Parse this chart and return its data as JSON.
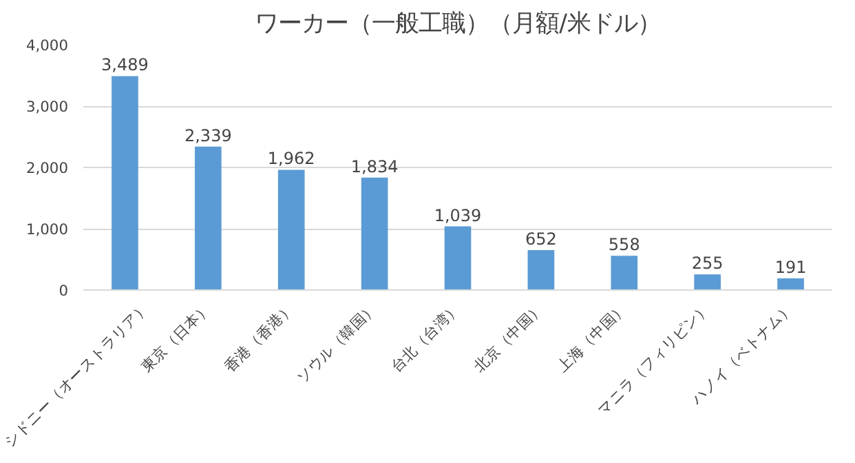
{
  "chart_data": {
    "type": "bar",
    "title": "ワーカー（一般工職）（月額/米ドル）",
    "categories": [
      "シドニー（オーストラリア）",
      "東京（日本）",
      "香港（香港）",
      "ソウル（韓国）",
      "台北（台湾）",
      "北京（中国）",
      "上海（中国）",
      "マニラ（フィリピン）",
      "ハノイ（ベトナム）"
    ],
    "values": [
      3489,
      2339,
      1962,
      1834,
      1039,
      652,
      558,
      255,
      191
    ],
    "color": "#5b9bd5",
    "ylim": [
      0,
      4000
    ],
    "yticks": [
      {
        "value": 0,
        "label": "0"
      },
      {
        "value": 1000,
        "label": "1,000"
      },
      {
        "value": 2000,
        "label": "2,000"
      },
      {
        "value": 3000,
        "label": "3,000"
      },
      {
        "value": 4000,
        "label": "4,000"
      }
    ],
    "value_labels": [
      "3,489",
      "2,339",
      "1,962",
      "1,834",
      "1,039",
      "652",
      "558",
      "255",
      "191"
    ],
    "grid": "y"
  }
}
